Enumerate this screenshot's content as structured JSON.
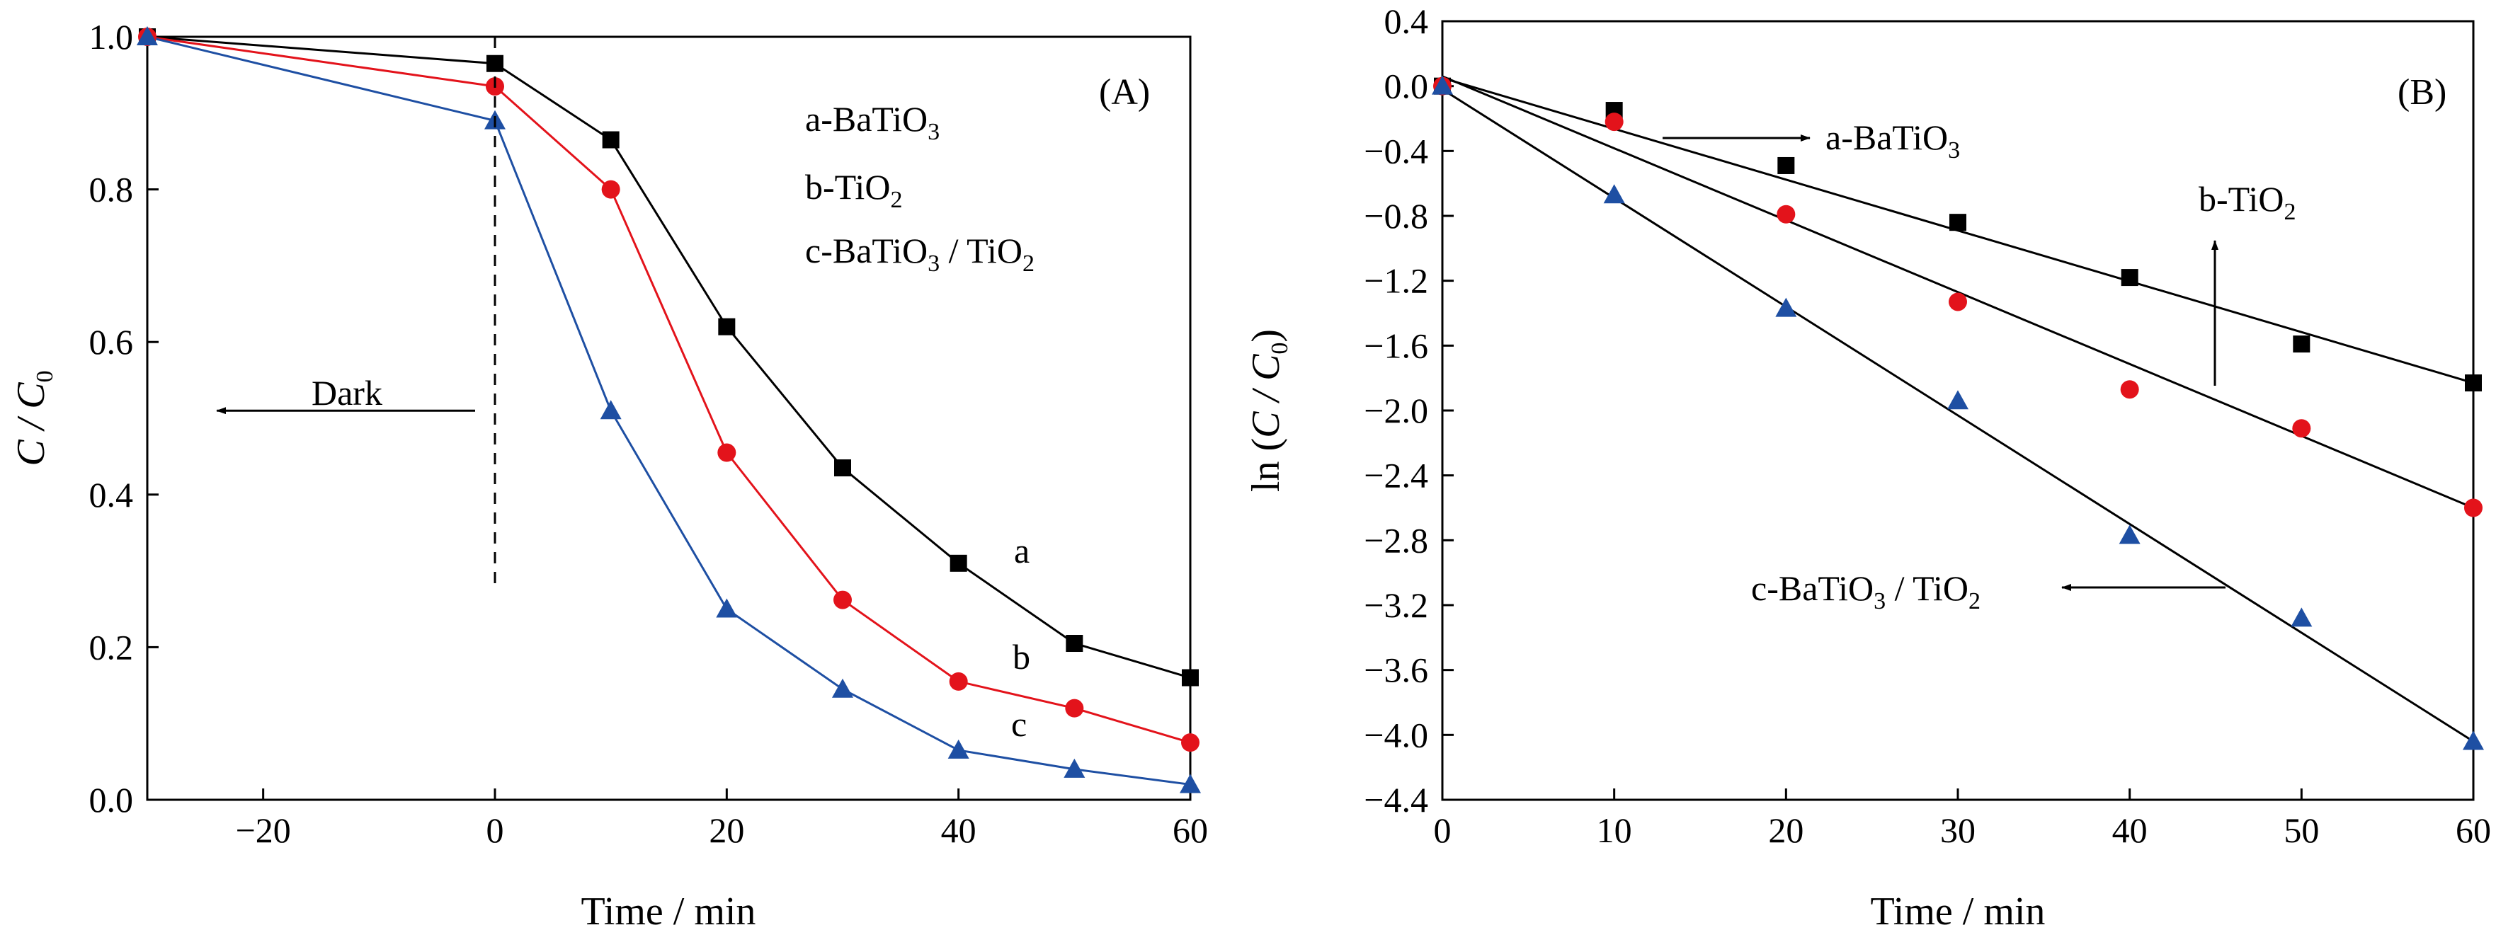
{
  "chart_data": [
    {
      "type": "line",
      "panel_label": "(A)",
      "xlabel": "Time / min",
      "ylabel": {
        "main": "C / C",
        "subscript": "0"
      },
      "xlim": [
        -30,
        60
      ],
      "ylim": [
        0.0,
        1.0
      ],
      "xticks": [
        -20,
        0,
        20,
        40,
        60
      ],
      "xtick_labels": [
        "−20",
        "0",
        "20",
        "40",
        "60"
      ],
      "yticks": [
        0.0,
        0.2,
        0.4,
        0.6,
        0.8,
        1.0
      ],
      "ytick_labels": [
        "0.0",
        "0.2",
        "0.4",
        "0.6",
        "0.8",
        "1.0"
      ],
      "grid": false,
      "dark_marker": {
        "x": 0,
        "y_from": 0.28,
        "y_to": 1.0,
        "arrow_to_x": -24,
        "arrow_y": 0.51,
        "label": "Dark"
      },
      "legend": {
        "placement": "top-right",
        "entries": [
          {
            "text": "a-BaTiO",
            "sub": "3",
            "tail": ""
          },
          {
            "text": "b-TiO",
            "sub": "2",
            "tail": ""
          },
          {
            "text": "c-BaTiO",
            "sub": "3",
            "tail": " / TiO",
            "tail_sub": "2"
          }
        ]
      },
      "series": [
        {
          "label": "a",
          "marker": "square",
          "color": "#000000",
          "x": [
            -30,
            0,
            10,
            20,
            30,
            40,
            50,
            60
          ],
          "y": [
            1.0,
            0.965,
            0.865,
            0.62,
            0.435,
            0.31,
            0.205,
            0.16
          ]
        },
        {
          "label": "b",
          "marker": "circle",
          "color": "#e3131b",
          "x": [
            -30,
            0,
            10,
            20,
            30,
            40,
            50,
            60
          ],
          "y": [
            1.0,
            0.935,
            0.8,
            0.455,
            0.262,
            0.155,
            0.12,
            0.075
          ]
        },
        {
          "label": "c",
          "marker": "triangle",
          "color": "#1e4fa3",
          "x": [
            -30,
            0,
            10,
            20,
            30,
            40,
            50,
            60
          ],
          "y": [
            1.0,
            0.89,
            0.51,
            0.25,
            0.145,
            0.065,
            0.04,
            0.02
          ]
        }
      ]
    },
    {
      "type": "scatter",
      "panel_label": "(B)",
      "xlabel": "Time / min",
      "ylabel": {
        "prefix": "ln (",
        "main": "C / C",
        "subscript": "0",
        "suffix": ")"
      },
      "xlim": [
        0,
        60
      ],
      "ylim": [
        -4.4,
        0.4
      ],
      "xticks": [
        0,
        10,
        20,
        30,
        40,
        50,
        60
      ],
      "xtick_labels": [
        "0",
        "10",
        "20",
        "30",
        "40",
        "50",
        "60"
      ],
      "yticks": [
        0.4,
        0.0,
        -0.4,
        -0.8,
        -1.2,
        -1.6,
        -2.0,
        -2.4,
        -2.8,
        -3.2,
        -3.6,
        -4.0,
        -4.4
      ],
      "ytick_labels": [
        "0.4",
        "0.0",
        "−0.4",
        "−0.8",
        "−1.2",
        "−1.6",
        "−2.0",
        "−2.4",
        "−2.8",
        "−3.2",
        "−3.6",
        "−4.0",
        "−4.4"
      ],
      "grid": false,
      "annotations": [
        {
          "text": "a-BaTiO",
          "sub": "3",
          "tail": "",
          "tail_sub": ""
        },
        {
          "text": "b-TiO",
          "sub": "2",
          "tail": "",
          "tail_sub": ""
        },
        {
          "text": "c-BaTiO",
          "sub": "3",
          "tail": " / TiO",
          "tail_sub": "2"
        }
      ],
      "series": [
        {
          "marker": "square",
          "color": "#000000",
          "x": [
            0,
            10,
            20,
            30,
            40,
            50,
            60
          ],
          "y": [
            0.0,
            -0.15,
            -0.49,
            -0.84,
            -1.18,
            -1.59,
            -1.83
          ],
          "fit": {
            "x": [
              0,
              60
            ],
            "y": [
              0.05,
              -1.83
            ]
          }
        },
        {
          "marker": "circle",
          "color": "#e3131b",
          "x": [
            0,
            10,
            20,
            30,
            40,
            50,
            60
          ],
          "y": [
            0.0,
            -0.22,
            -0.79,
            -1.33,
            -1.87,
            -2.11,
            -2.6
          ],
          "fit": {
            "x": [
              0,
              60
            ],
            "y": [
              0.06,
              -2.6
            ]
          }
        },
        {
          "marker": "triangle",
          "color": "#1e4fa3",
          "x": [
            0,
            10,
            20,
            30,
            40,
            50,
            60
          ],
          "y": [
            0.0,
            -0.67,
            -1.37,
            -1.94,
            -2.77,
            -3.28,
            -4.04
          ],
          "fit": {
            "x": [
              0,
              60
            ],
            "y": [
              -0.02,
              -4.04
            ]
          }
        }
      ]
    }
  ]
}
